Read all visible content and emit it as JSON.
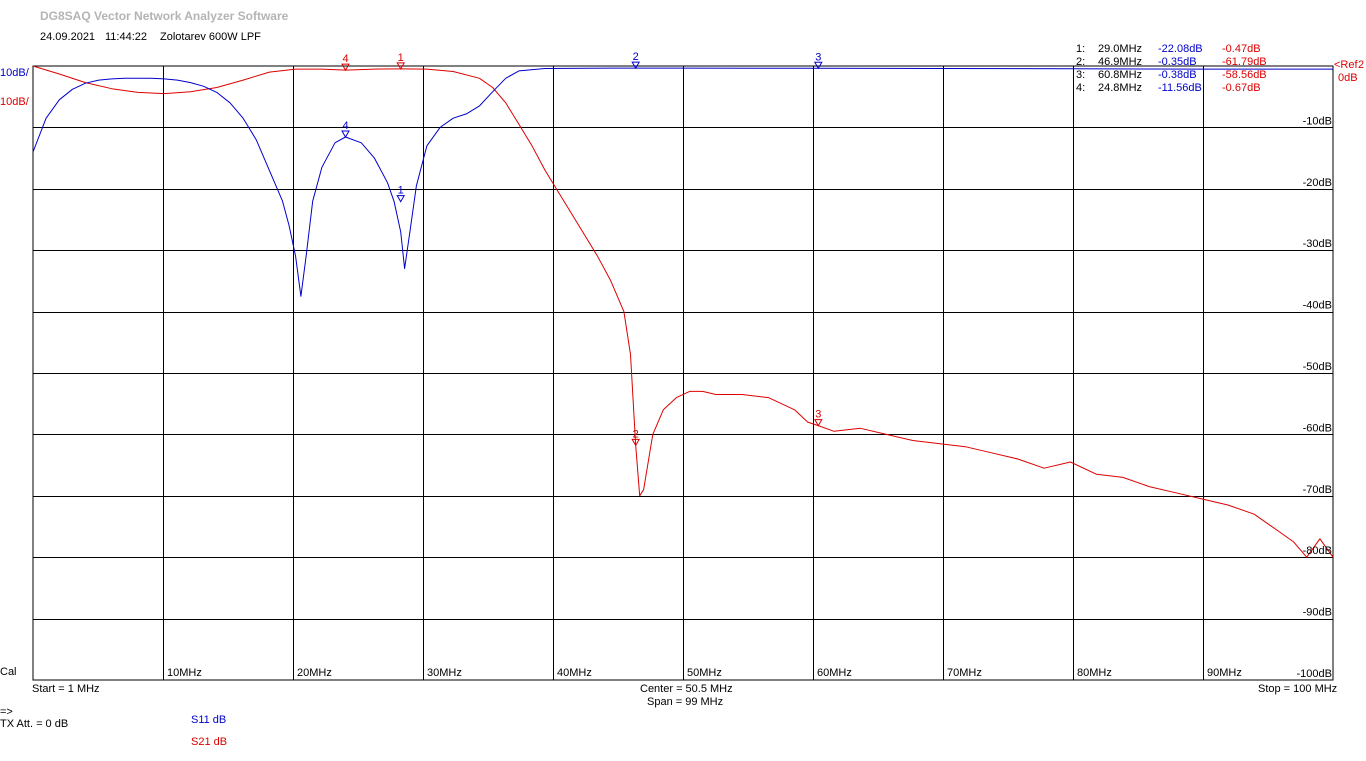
{
  "app": {
    "title": "DG8SAQ Vector Network Analyzer Software",
    "date": "24.09.2021",
    "time": "11:44:22",
    "device": "Zolotarev 600W LPF"
  },
  "scale": {
    "s11_label": "10dB/",
    "s21_label": "10dB/",
    "ref_label": "<Ref",
    "ref_value": "0dB",
    "ref_cut": "2",
    "cal": "Cal"
  },
  "footer": {
    "start": "Start = 1 MHz",
    "center": "Center = 50.5 MHz",
    "span": "Span = 99 MHz",
    "stop": "Stop = 100 MHz",
    "arrow": "=>",
    "tx_att": "TX Att.  = 0 dB",
    "s11_legend": "S11  dB",
    "s21_legend": "S21  dB"
  },
  "markers": [
    {
      "idx": "1:",
      "freq": "29.0MHz",
      "s11": "-22.08dB",
      "s21": "-0.47dB"
    },
    {
      "idx": "2:",
      "freq": "46.9MHz",
      "s11": "-0.35dB",
      "s21": "-61.79dB"
    },
    {
      "idx": "3:",
      "freq": "60.8MHz",
      "s11": "-0.38dB",
      "s21": "-58.56dB"
    },
    {
      "idx": "4:",
      "freq": "24.8MHz",
      "s11": "-11.56dB",
      "s21": "-0.67dB"
    }
  ],
  "colors": {
    "s11": "#0000cc",
    "s21": "#dd0000",
    "grid": "#000000",
    "title": "#b4b4b4"
  },
  "chart_data": {
    "type": "line",
    "title": "Zolotarev 600W LPF",
    "xlabel": "",
    "ylabel": "",
    "xlim": [
      1,
      100
    ],
    "ylim": [
      -100,
      0
    ],
    "grid": true,
    "x_ticks": [
      "10MHz",
      "20MHz",
      "30MHz",
      "40MHz",
      "50MHz",
      "60MHz",
      "70MHz",
      "80MHz",
      "90MHz"
    ],
    "y_ticks": [
      "-10dB",
      "-20dB",
      "-30dB",
      "-40dB",
      "-50dB",
      "-60dB",
      "-70dB",
      "-80dB",
      "-90dB",
      "-100dB"
    ],
    "series": [
      {
        "name": "S11  dB",
        "x": [
          1,
          2,
          3,
          4,
          5,
          6,
          7,
          8,
          9,
          10,
          11,
          12,
          13,
          14,
          15,
          16,
          17,
          18,
          19,
          20,
          20.5,
          21,
          21.4,
          21.8,
          22.3,
          23,
          24,
          24.8,
          26,
          27,
          28,
          28.5,
          29,
          29.3,
          29.7,
          30.2,
          31,
          32,
          33,
          34,
          35,
          36,
          37,
          38,
          40,
          45,
          50,
          60,
          70,
          80,
          90,
          100
        ],
        "y": [
          -14,
          -8.5,
          -5.5,
          -3.8,
          -2.8,
          -2.3,
          -2.1,
          -2,
          -2,
          -2,
          -2.1,
          -2.3,
          -2.7,
          -3.3,
          -4.3,
          -6,
          -8.5,
          -12,
          -17,
          -22,
          -26,
          -31,
          -37.5,
          -31,
          -22,
          -16.5,
          -12.5,
          -11.56,
          -12.5,
          -15,
          -19,
          -22.08,
          -27,
          -33,
          -27,
          -19.5,
          -13,
          -10,
          -8.5,
          -7.8,
          -6.5,
          -4.2,
          -2,
          -0.8,
          -0.4,
          -0.35,
          -0.35,
          -0.38,
          -0.4,
          -0.45,
          -0.5,
          -0.5
        ]
      },
      {
        "name": "S21  dB",
        "x": [
          1,
          3,
          5,
          7,
          9,
          11,
          13,
          15,
          17,
          19,
          21,
          23,
          24.8,
          27,
          29,
          31,
          33,
          35,
          36,
          37,
          38,
          39,
          40,
          42,
          44,
          45,
          46,
          46.5,
          46.9,
          47.2,
          47.5,
          48.2,
          49,
          50,
          51,
          52,
          53,
          55,
          57,
          59,
          60,
          60.8,
          62,
          64,
          66,
          68,
          70,
          72,
          74,
          76,
          78,
          80,
          82,
          84,
          86,
          88,
          90,
          92,
          94,
          96,
          97,
          98,
          99,
          100
        ],
        "y": [
          0,
          -1.3,
          -2.7,
          -3.7,
          -4.3,
          -4.5,
          -4.2,
          -3.5,
          -2.3,
          -1,
          -0.5,
          -0.5,
          -0.67,
          -0.5,
          -0.47,
          -0.5,
          -0.9,
          -2,
          -3.5,
          -6,
          -9.5,
          -13,
          -17,
          -24,
          -31,
          -35,
          -40,
          -47,
          -61.79,
          -70,
          -69,
          -60,
          -56,
          -54,
          -53,
          -53,
          -53.5,
          -53.5,
          -54,
          -56,
          -58,
          -58.56,
          -59.5,
          -59,
          -60,
          -61,
          -61.5,
          -62,
          -63,
          -64,
          -65.5,
          -64.5,
          -66.5,
          -67,
          -68.5,
          -69.5,
          -70.5,
          -71.5,
          -73,
          -76,
          -77.5,
          -80,
          -77,
          -80
        ]
      }
    ]
  }
}
